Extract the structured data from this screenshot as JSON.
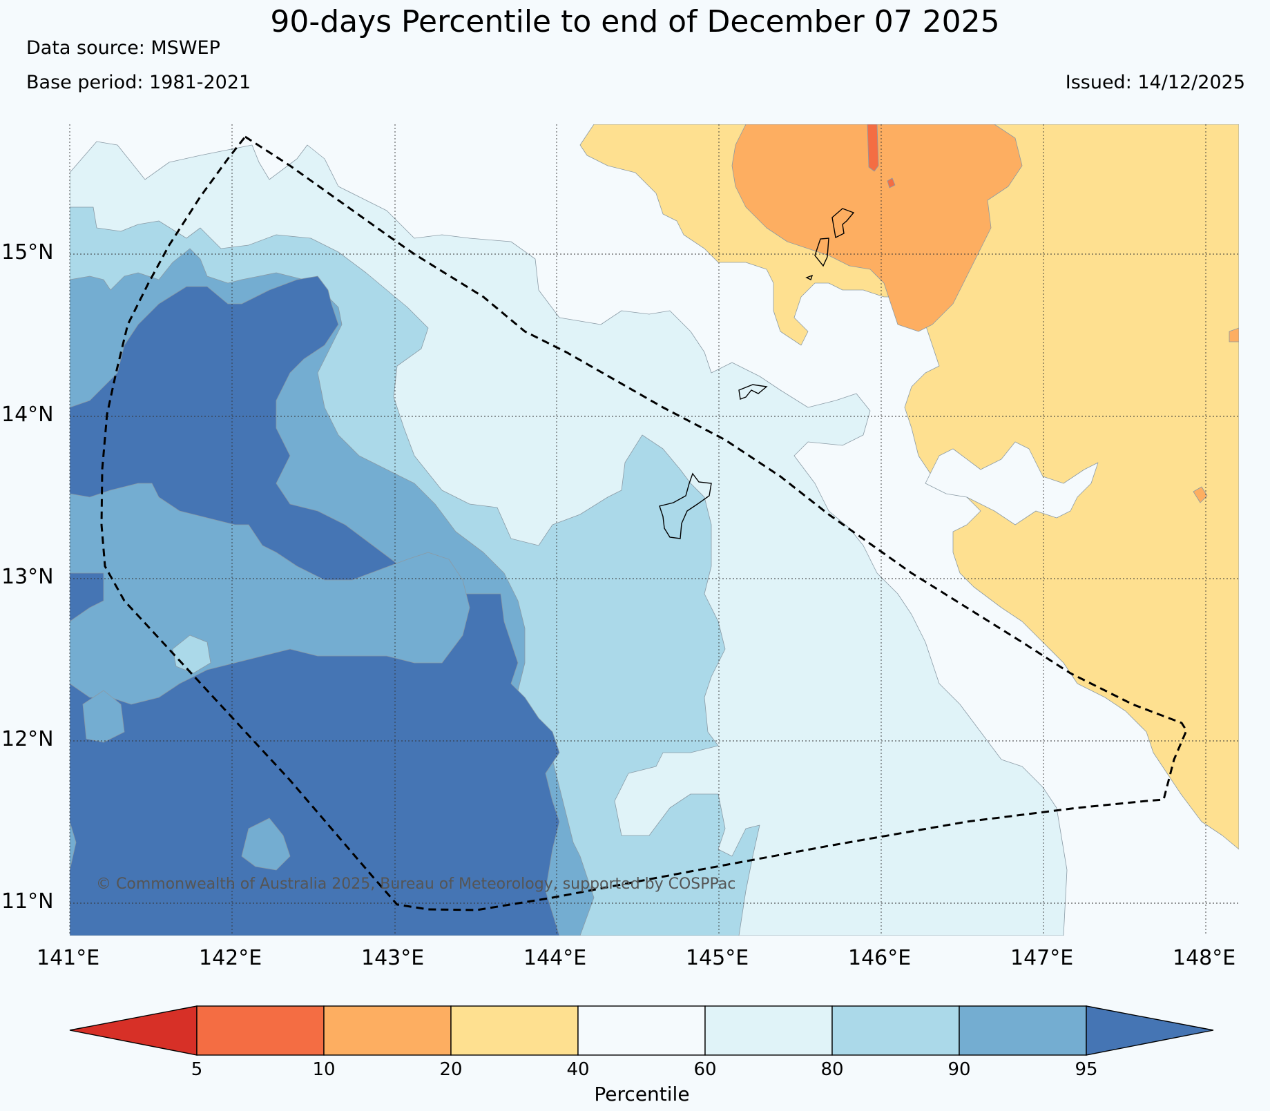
{
  "header": {
    "title": "90-days Percentile to end of December 07 2025",
    "data_source": "Data source: MSWEP",
    "base_period": "Base period: 1981-2021",
    "issued": "Issued: 14/12/2025"
  },
  "map": {
    "copyright": "© Commonwealth of Australia 2025, Bureau of Meteorology, supported by COSPPac",
    "lat_labels": [
      "15°N",
      "14°N",
      "13°N",
      "12°N",
      "11°N"
    ],
    "lon_labels": [
      "141°E",
      "142°E",
      "143°E",
      "144°E",
      "145°E",
      "146°E",
      "147°E",
      "148°E"
    ]
  },
  "colorbar": {
    "title": "Percentile",
    "ticks": [
      "5",
      "10",
      "20",
      "40",
      "60",
      "80",
      "90",
      "95"
    ],
    "colors": [
      "#d73027",
      "#f46d43",
      "#fdae61",
      "#fee090",
      "#f5fafd",
      "#e0f3f8",
      "#abd9e9",
      "#74add1",
      "#4575b4"
    ]
  }
}
